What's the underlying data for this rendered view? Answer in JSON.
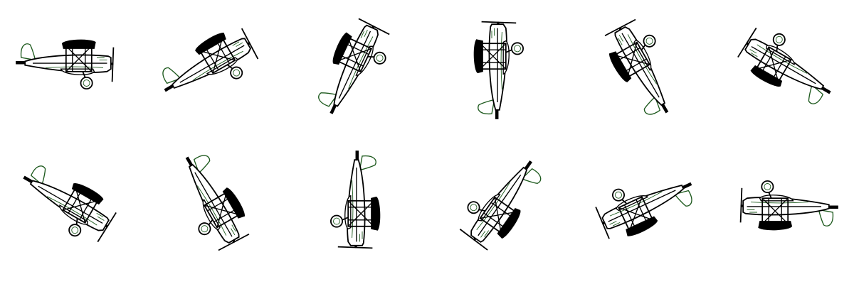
{
  "sprite_sheet": {
    "subject": "biplane-icon",
    "background": "#ffffff",
    "colors": {
      "ink": "#000000",
      "outline": "#1e5a1e",
      "fill": "#ffffff"
    },
    "rows": 2,
    "columns": 6,
    "frames": [
      {
        "rotation_deg": 0
      },
      {
        "rotation_deg": -30
      },
      {
        "rotation_deg": -65
      },
      {
        "rotation_deg": -90
      },
      {
        "rotation_deg": -120
      },
      {
        "rotation_deg": -150
      },
      {
        "rotation_deg": 30
      },
      {
        "rotation_deg": 60
      },
      {
        "rotation_deg": 90
      },
      {
        "rotation_deg": 125
      },
      {
        "rotation_deg": 155
      },
      {
        "rotation_deg": 180
      }
    ]
  }
}
